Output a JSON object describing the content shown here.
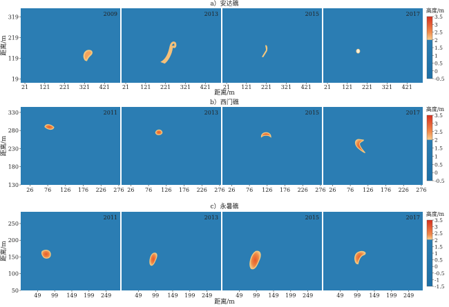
{
  "chart_data": [
    {
      "type": "heatmap",
      "title": "a）安达礁",
      "ylabel": "距离/m",
      "xlabel": "距离/m",
      "x_ticks": [
        21,
        121,
        221,
        321,
        421
      ],
      "y_ticks": [
        19,
        119,
        219,
        319
      ],
      "xlim": [
        0,
        500
      ],
      "ylim": [
        0,
        360
      ],
      "background_value": 1.0,
      "panels": [
        {
          "year": "2009",
          "shape": "hook",
          "cx": 340,
          "cy": 130,
          "size": 60
        },
        {
          "year": "2013",
          "shape": "long_hook",
          "cx": 240,
          "cy": 150,
          "size": 120
        },
        {
          "year": "2015",
          "shape": "streak",
          "cx": 215,
          "cy": 150,
          "size": 70
        },
        {
          "year": "2017",
          "shape": "dot",
          "cx": 175,
          "cy": 153,
          "size": 8
        }
      ],
      "colorbar": {
        "label": "高度/m",
        "ticks": [
          "3.5",
          "3",
          "2.5",
          "2",
          "1.5",
          "1",
          "0.5",
          "0",
          "-0.5"
        ],
        "range": [
          -0.5,
          3.5
        ],
        "color_above": "#e8602c",
        "color_mid": "#f5c97a",
        "color_below": "#2a7fb0"
      }
    },
    {
      "type": "heatmap",
      "title": "b）西门礁",
      "ylabel": "距离/m",
      "xlabel": "",
      "x_ticks": [
        26,
        76,
        126,
        176,
        226,
        276
      ],
      "y_ticks": [
        130,
        180,
        230,
        280,
        330
      ],
      "xlim": [
        0,
        280
      ],
      "ylim": [
        130,
        345
      ],
      "background_value": 1.0,
      "panels": [
        {
          "year": "2011",
          "shape": "blob_flat",
          "cx": 80,
          "cy": 288,
          "size": 22
        },
        {
          "year": "2013",
          "shape": "blob_small",
          "cx": 105,
          "cy": 275,
          "size": 18
        },
        {
          "year": "2015",
          "shape": "crescent",
          "cx": 123,
          "cy": 267,
          "size": 24
        },
        {
          "year": "2017",
          "shape": "curved",
          "cx": 102,
          "cy": 237,
          "size": 45
        }
      ],
      "colorbar": {
        "label": "高度/m",
        "ticks": [
          "3.5",
          "3",
          "2.5",
          "2",
          "1.5",
          "1",
          "0.5",
          "0",
          "-0.5"
        ],
        "range": [
          -0.5,
          3.5
        ]
      }
    },
    {
      "type": "heatmap",
      "title": "c）永暑礁",
      "ylabel": "距离/m",
      "xlabel": "距离/m",
      "x_ticks": [
        49,
        99,
        149,
        199,
        249
      ],
      "y_ticks": [
        50,
        100,
        150,
        200,
        250
      ],
      "xlim": [
        0,
        290
      ],
      "ylim": [
        50,
        285
      ],
      "background_value": 1.0,
      "panels": [
        {
          "year": "2011",
          "shape": "blob",
          "cx": 75,
          "cy": 158,
          "size": 26
        },
        {
          "year": "2013",
          "shape": "elongated",
          "cx": 92,
          "cy": 143,
          "size": 40
        },
        {
          "year": "2015",
          "shape": "big_elongated",
          "cx": 95,
          "cy": 140,
          "size": 52
        },
        {
          "year": "2017",
          "shape": "bean",
          "cx": 105,
          "cy": 148,
          "size": 40
        }
      ],
      "colorbar": {
        "label": "高度/m",
        "ticks": [
          "3.5",
          "3",
          "2.5",
          "2",
          "1.5",
          "1",
          "0.5",
          "0",
          "-0.5",
          "-1",
          "-1.5"
        ],
        "range": [
          -1.5,
          3.5
        ]
      }
    }
  ]
}
